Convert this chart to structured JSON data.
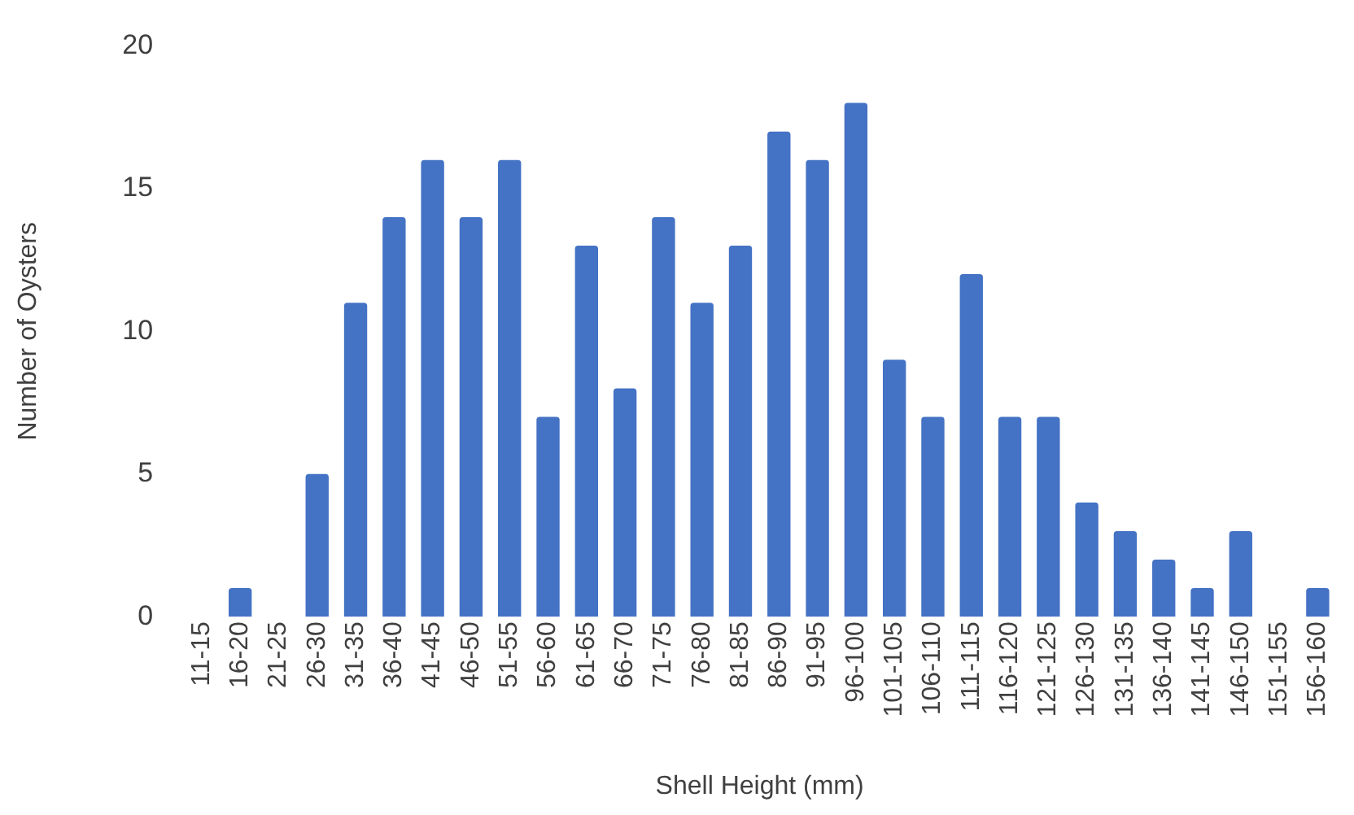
{
  "chart_data": {
    "type": "bar",
    "xlabel": "Shell Height (mm)",
    "ylabel": "Number of Oysters",
    "categories": [
      "11-15",
      "16-20",
      "21-25",
      "26-30",
      "31-35",
      "36-40",
      "41-45",
      "46-50",
      "51-55",
      "56-60",
      "61-65",
      "66-70",
      "71-75",
      "76-80",
      "81-85",
      "86-90",
      "91-95",
      "96-100",
      "101-105",
      "106-110",
      "111-115",
      "116-120",
      "121-125",
      "126-130",
      "131-135",
      "136-140",
      "141-145",
      "146-150",
      "151-155",
      "156-160"
    ],
    "values": [
      0,
      1,
      0,
      5,
      11,
      14,
      16,
      14,
      16,
      7,
      13,
      8,
      14,
      11,
      13,
      17,
      16,
      18,
      9,
      7,
      12,
      7,
      7,
      4,
      3,
      2,
      1,
      3,
      0,
      1
    ],
    "color": "#4472c4",
    "ylim": [
      0,
      20
    ],
    "yticks": [
      0,
      5,
      10,
      15,
      20
    ],
    "grid": false,
    "legend": false
  }
}
